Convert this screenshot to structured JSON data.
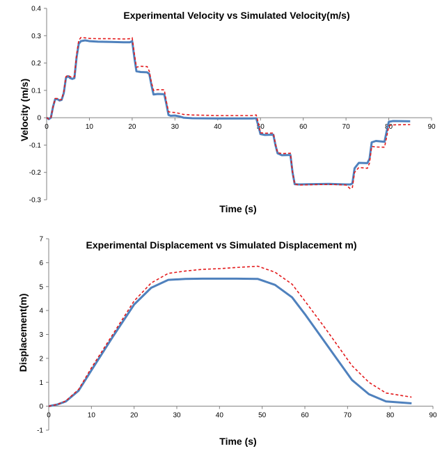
{
  "colors": {
    "experimental": "#4f81bd",
    "simulated": "#e31a1c",
    "axis": "#808080"
  },
  "chart_data": [
    {
      "type": "line",
      "title": "Experimental Velocity vs Simulated Velocity(m/s)",
      "xlabel": "Time (s)",
      "ylabel": "Velocity (m/s)",
      "xlim": [
        0,
        90
      ],
      "ylim": [
        -0.3,
        0.4
      ],
      "xticks": [
        0,
        10,
        20,
        30,
        40,
        50,
        60,
        70,
        80,
        90
      ],
      "yticks": [
        -0.3,
        -0.2,
        -0.1,
        0,
        0.1,
        0.2,
        0.3,
        0.4
      ],
      "xtick_labels": [
        "0",
        "10",
        "20",
        "30",
        "40",
        "50",
        "60",
        "70",
        "80",
        "90"
      ],
      "ytick_labels": [
        "-0.3",
        "-0.2",
        "-0.1",
        "0",
        "0.1",
        "0.2",
        "0.3",
        "0.4"
      ],
      "grid": false,
      "legend": "none",
      "series": [
        {
          "style": "solid",
          "color": "#4f81bd",
          "x": [
            0,
            0.5,
            1,
            1.5,
            2,
            2.5,
            3,
            3.5,
            4,
            4.5,
            5,
            5.5,
            6,
            6.5,
            7,
            7.5,
            8,
            9,
            10,
            12,
            15,
            18,
            19.5,
            20,
            20.5,
            21,
            22,
            23.5,
            24,
            24.5,
            25,
            26,
            27.5,
            28,
            28.5,
            29,
            30,
            31,
            32,
            34,
            40,
            48,
            49,
            49.5,
            50,
            51,
            53,
            53.5,
            54,
            55,
            57,
            57.5,
            58,
            59,
            62,
            66,
            70,
            71,
            71.5,
            72,
            73,
            75,
            75.5,
            76,
            77,
            79,
            79.5,
            80,
            81,
            85
          ],
          "y": [
            0,
            -0.005,
            0,
            0.04,
            0.068,
            0.068,
            0.063,
            0.065,
            0.09,
            0.145,
            0.152,
            0.145,
            0.142,
            0.145,
            0.22,
            0.27,
            0.28,
            0.283,
            0.28,
            0.278,
            0.277,
            0.276,
            0.276,
            0.28,
            0.22,
            0.17,
            0.167,
            0.166,
            0.16,
            0.12,
            0.085,
            0.087,
            0.086,
            0.05,
            0.01,
            0.007,
            0.008,
            0.005,
            0,
            -0.002,
            -0.003,
            -0.003,
            -0.002,
            -0.03,
            -0.06,
            -0.063,
            -0.062,
            -0.1,
            -0.13,
            -0.137,
            -0.136,
            -0.2,
            -0.243,
            -0.244,
            -0.243,
            -0.242,
            -0.244,
            -0.244,
            -0.24,
            -0.185,
            -0.165,
            -0.166,
            -0.15,
            -0.09,
            -0.085,
            -0.088,
            -0.05,
            -0.015,
            -0.012,
            -0.013
          ]
        },
        {
          "style": "dashed",
          "color": "#e31a1c",
          "x": [
            0,
            0.5,
            1,
            1.5,
            2,
            2.5,
            3,
            3.5,
            4,
            4.5,
            5,
            5.5,
            6,
            6.5,
            7,
            7.5,
            8,
            9,
            10,
            12,
            15,
            18,
            19.5,
            20,
            20.5,
            21,
            22,
            23.5,
            24,
            24.5,
            25,
            26,
            27.5,
            28,
            28.5,
            29,
            30,
            31,
            32,
            34,
            40,
            48,
            49,
            49.5,
            50,
            51,
            53,
            53.5,
            54,
            55,
            57,
            57.5,
            58,
            59,
            62,
            66,
            70,
            71,
            71.5,
            72,
            73,
            75,
            75.5,
            76,
            77,
            79,
            79.5,
            80,
            81,
            85
          ],
          "y": [
            0,
            -0.005,
            0,
            0.04,
            0.07,
            0.07,
            0.065,
            0.067,
            0.095,
            0.15,
            0.156,
            0.15,
            0.148,
            0.15,
            0.23,
            0.283,
            0.293,
            0.292,
            0.29,
            0.289,
            0.289,
            0.288,
            0.289,
            0.292,
            0.235,
            0.185,
            0.188,
            0.187,
            0.17,
            0.13,
            0.1,
            0.103,
            0.102,
            0.06,
            0.022,
            0.02,
            0.019,
            0.016,
            0.012,
            0.01,
            0.008,
            0.008,
            0.01,
            -0.02,
            -0.055,
            -0.057,
            -0.056,
            -0.095,
            -0.128,
            -0.131,
            -0.13,
            -0.2,
            -0.243,
            -0.246,
            -0.245,
            -0.244,
            -0.246,
            -0.26,
            -0.255,
            -0.2,
            -0.182,
            -0.185,
            -0.165,
            -0.105,
            -0.107,
            -0.108,
            -0.07,
            -0.03,
            -0.026,
            -0.025
          ]
        }
      ]
    },
    {
      "type": "line",
      "title": "Experimental Displacement vs Simulated Displacement m)",
      "xlabel": "Time (s)",
      "ylabel": "Displacement(m)",
      "xlim": [
        0,
        90
      ],
      "ylim": [
        -1,
        7
      ],
      "xticks": [
        0,
        10,
        20,
        30,
        40,
        50,
        60,
        70,
        80,
        90
      ],
      "yticks": [
        -1,
        0,
        1,
        2,
        3,
        4,
        5,
        6,
        7
      ],
      "xtick_labels": [
        "0",
        "10",
        "20",
        "30",
        "40",
        "50",
        "60",
        "70",
        "80",
        "90"
      ],
      "ytick_labels": [
        "-1",
        "0",
        "1",
        "2",
        "3",
        "4",
        "5",
        "6",
        "7"
      ],
      "grid": false,
      "legend": "none",
      "series": [
        {
          "style": "solid",
          "color": "#4f81bd",
          "x": [
            0,
            2,
            4,
            7,
            10,
            15,
            20,
            24,
            28,
            32,
            36,
            40,
            44,
            49,
            53,
            57,
            60,
            65,
            71,
            75,
            79,
            85
          ],
          "y": [
            0,
            0.07,
            0.2,
            0.65,
            1.5,
            2.9,
            4.25,
            4.95,
            5.28,
            5.32,
            5.33,
            5.33,
            5.33,
            5.32,
            5.07,
            4.55,
            3.85,
            2.6,
            1.1,
            0.5,
            0.2,
            0.12
          ]
        },
        {
          "style": "dashed",
          "color": "#e31a1c",
          "x": [
            0,
            2,
            4,
            7,
            10,
            15,
            20,
            24,
            28,
            32,
            36,
            40,
            44,
            49,
            53,
            57,
            60,
            65,
            71,
            75,
            79,
            85
          ],
          "y": [
            0,
            0.07,
            0.22,
            0.7,
            1.6,
            3.0,
            4.4,
            5.15,
            5.55,
            5.65,
            5.72,
            5.75,
            5.8,
            5.85,
            5.6,
            5.1,
            4.4,
            3.2,
            1.7,
            1.0,
            0.55,
            0.38
          ]
        }
      ]
    }
  ]
}
